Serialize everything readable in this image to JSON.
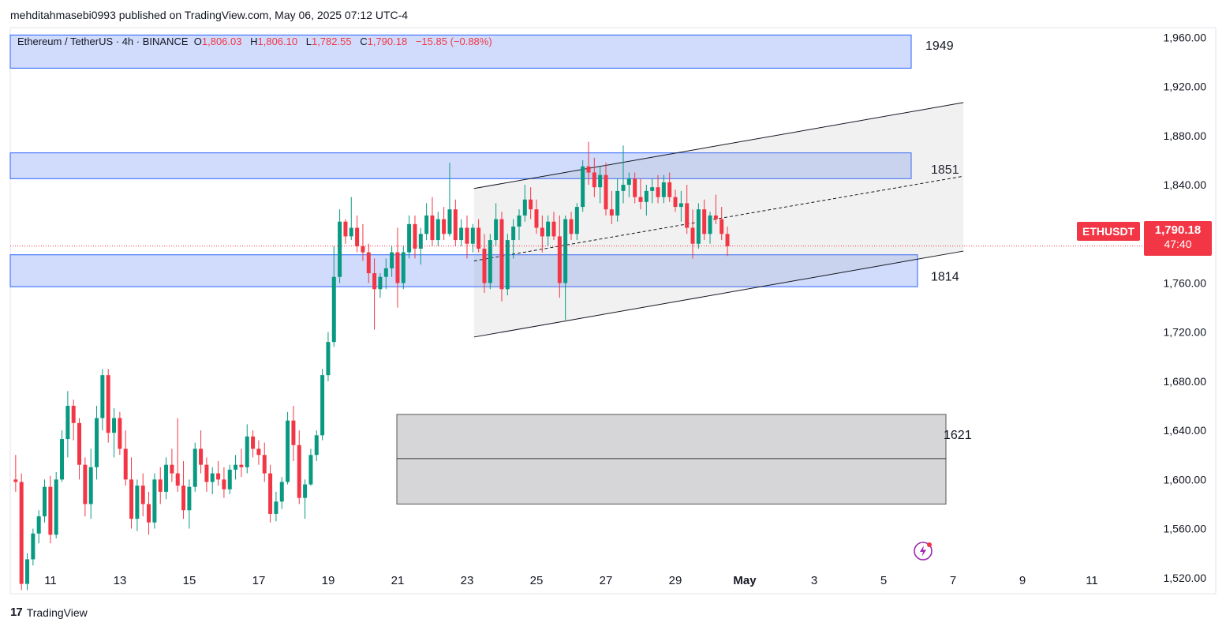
{
  "caption": "mehditahmasebi0993 published on TradingView.com, May 06, 2025 07:12 UTC-4",
  "ohlc": {
    "title": "Ethereum / TetherUS · 4h · BINANCE",
    "o_label": "O",
    "o_value": "1,806.03",
    "h_label": "H",
    "h_value": "1,806.10",
    "l_label": "L",
    "l_value": "1,782.55",
    "c_label": "C",
    "c_value": "1,790.18",
    "change": "−15.85 (−0.88%)"
  },
  "symbol_badge": "ETHUSDT",
  "price_badge": {
    "price": "1,790.18",
    "timer": "47:40"
  },
  "footer_logo_text": "TradingView",
  "colors": {
    "up": "#089981",
    "down": "#f23645",
    "zone_blue": "#c9d6fb",
    "zone_gray": "#cfcfd2",
    "channel": "#eeeeee"
  },
  "chart_data": {
    "type": "candlestick",
    "symbol": "ETHUSDT",
    "interval": "4h",
    "ylim": [
      1507,
      1968
    ],
    "y_ticks": [
      "1,520.00",
      "1,560.00",
      "1,600.00",
      "1,640.00",
      "1,680.00",
      "1,720.00",
      "1,760.00",
      "1,800.00",
      "1,840.00",
      "1,880.00",
      "1,920.00",
      "1,960.00"
    ],
    "y_tick_values": [
      1520,
      1560,
      1600,
      1640,
      1680,
      1720,
      1760,
      1800,
      1840,
      1880,
      1920,
      1960
    ],
    "x_ticks": [
      "11",
      "13",
      "15",
      "17",
      "19",
      "21",
      "23",
      "25",
      "27",
      "29",
      "May",
      "3",
      "5",
      "7",
      "9",
      "11"
    ],
    "x_tick_days": [
      0,
      2,
      4,
      6,
      8,
      10,
      12,
      14,
      16,
      18,
      20,
      22,
      24,
      26,
      28,
      30
    ],
    "candles": [
      [
        1665,
        1668,
        1595,
        1600
      ],
      [
        1600,
        1620,
        1590,
        1598
      ],
      [
        1598,
        1605,
        1510,
        1515
      ],
      [
        1515,
        1540,
        1510,
        1535
      ],
      [
        1535,
        1560,
        1530,
        1556
      ],
      [
        1556,
        1575,
        1548,
        1570
      ],
      [
        1570,
        1600,
        1565,
        1594
      ],
      [
        1594,
        1603,
        1548,
        1555
      ],
      [
        1555,
        1606,
        1552,
        1600
      ],
      [
        1600,
        1640,
        1598,
        1633
      ],
      [
        1633,
        1672,
        1618,
        1660
      ],
      [
        1660,
        1665,
        1632,
        1646
      ],
      [
        1646,
        1650,
        1600,
        1612
      ],
      [
        1612,
        1618,
        1570,
        1580
      ],
      [
        1580,
        1625,
        1568,
        1610
      ],
      [
        1610,
        1660,
        1600,
        1650
      ],
      [
        1650,
        1690,
        1640,
        1685
      ],
      [
        1685,
        1690,
        1630,
        1638
      ],
      [
        1638,
        1658,
        1618,
        1650
      ],
      [
        1650,
        1655,
        1620,
        1625
      ],
      [
        1625,
        1640,
        1595,
        1600
      ],
      [
        1600,
        1618,
        1560,
        1568
      ],
      [
        1568,
        1600,
        1558,
        1595
      ],
      [
        1595,
        1605,
        1570,
        1580
      ],
      [
        1580,
        1590,
        1555,
        1565
      ],
      [
        1565,
        1605,
        1560,
        1600
      ],
      [
        1600,
        1610,
        1580,
        1590
      ],
      [
        1590,
        1618,
        1584,
        1612
      ],
      [
        1612,
        1625,
        1598,
        1605
      ],
      [
        1605,
        1650,
        1590,
        1595
      ],
      [
        1595,
        1615,
        1568,
        1575
      ],
      [
        1575,
        1600,
        1560,
        1594
      ],
      [
        1594,
        1630,
        1590,
        1625
      ],
      [
        1625,
        1640,
        1605,
        1612
      ],
      [
        1612,
        1618,
        1590,
        1598
      ],
      [
        1598,
        1610,
        1588,
        1605
      ],
      [
        1605,
        1615,
        1595,
        1600
      ],
      [
        1600,
        1610,
        1585,
        1592
      ],
      [
        1592,
        1612,
        1588,
        1608
      ],
      [
        1608,
        1620,
        1600,
        1612
      ],
      [
        1612,
        1625,
        1602,
        1610
      ],
      [
        1610,
        1645,
        1605,
        1635
      ],
      [
        1635,
        1640,
        1618,
        1625
      ],
      [
        1625,
        1632,
        1612,
        1620
      ],
      [
        1620,
        1630,
        1598,
        1605
      ],
      [
        1605,
        1612,
        1565,
        1572
      ],
      [
        1572,
        1590,
        1566,
        1582
      ],
      [
        1582,
        1602,
        1576,
        1598
      ],
      [
        1598,
        1655,
        1596,
        1648
      ],
      [
        1648,
        1660,
        1615,
        1628
      ],
      [
        1628,
        1640,
        1580,
        1585
      ],
      [
        1585,
        1600,
        1568,
        1596
      ],
      [
        1596,
        1625,
        1595,
        1620
      ],
      [
        1620,
        1640,
        1615,
        1636
      ],
      [
        1636,
        1690,
        1632,
        1685
      ],
      [
        1685,
        1720,
        1680,
        1712
      ],
      [
        1712,
        1790,
        1708,
        1765
      ],
      [
        1765,
        1820,
        1760,
        1810
      ],
      [
        1810,
        1812,
        1792,
        1798
      ],
      [
        1798,
        1830,
        1795,
        1805
      ],
      [
        1805,
        1815,
        1785,
        1790
      ],
      [
        1790,
        1808,
        1778,
        1785
      ],
      [
        1785,
        1792,
        1760,
        1768
      ],
      [
        1768,
        1780,
        1722,
        1755
      ],
      [
        1755,
        1768,
        1748,
        1765
      ],
      [
        1765,
        1780,
        1755,
        1772
      ],
      [
        1772,
        1790,
        1765,
        1785
      ],
      [
        1785,
        1805,
        1740,
        1760
      ],
      [
        1760,
        1790,
        1755,
        1785
      ],
      [
        1785,
        1815,
        1780,
        1808
      ],
      [
        1808,
        1815,
        1780,
        1788
      ],
      [
        1788,
        1805,
        1775,
        1800
      ],
      [
        1800,
        1825,
        1795,
        1815
      ],
      [
        1815,
        1830,
        1790,
        1795
      ],
      [
        1795,
        1818,
        1790,
        1812
      ],
      [
        1812,
        1822,
        1795,
        1800
      ],
      [
        1800,
        1858,
        1798,
        1820
      ],
      [
        1820,
        1828,
        1790,
        1795
      ],
      [
        1795,
        1812,
        1790,
        1805
      ],
      [
        1805,
        1815,
        1780,
        1792
      ],
      [
        1792,
        1808,
        1785,
        1805
      ],
      [
        1805,
        1812,
        1785,
        1788
      ],
      [
        1788,
        1800,
        1752,
        1760
      ],
      [
        1760,
        1800,
        1755,
        1795
      ],
      [
        1795,
        1825,
        1790,
        1812
      ],
      [
        1812,
        1818,
        1745,
        1755
      ],
      [
        1755,
        1800,
        1750,
        1795
      ],
      [
        1795,
        1812,
        1780,
        1806
      ],
      [
        1806,
        1820,
        1795,
        1815
      ],
      [
        1815,
        1840,
        1810,
        1828
      ],
      [
        1828,
        1838,
        1812,
        1820
      ],
      [
        1820,
        1828,
        1800,
        1805
      ],
      [
        1805,
        1815,
        1785,
        1798
      ],
      [
        1798,
        1815,
        1790,
        1810
      ],
      [
        1810,
        1818,
        1795,
        1798
      ],
      [
        1798,
        1815,
        1748,
        1760
      ],
      [
        1760,
        1815,
        1730,
        1812
      ],
      [
        1812,
        1818,
        1795,
        1800
      ],
      [
        1800,
        1825,
        1795,
        1822
      ],
      [
        1822,
        1860,
        1818,
        1855
      ],
      [
        1855,
        1875,
        1840,
        1850
      ],
      [
        1850,
        1862,
        1830,
        1838
      ],
      [
        1838,
        1855,
        1825,
        1848
      ],
      [
        1848,
        1858,
        1815,
        1820
      ],
      [
        1820,
        1835,
        1808,
        1815
      ],
      [
        1815,
        1845,
        1810,
        1835
      ],
      [
        1835,
        1872,
        1825,
        1840
      ],
      [
        1840,
        1850,
        1830,
        1845
      ],
      [
        1845,
        1850,
        1825,
        1830
      ],
      [
        1830,
        1845,
        1820,
        1826
      ],
      [
        1826,
        1840,
        1815,
        1835
      ],
      [
        1835,
        1845,
        1825,
        1838
      ],
      [
        1838,
        1848,
        1825,
        1830
      ],
      [
        1830,
        1848,
        1825,
        1842
      ],
      [
        1842,
        1850,
        1826,
        1830
      ],
      [
        1830,
        1836,
        1818,
        1822
      ],
      [
        1822,
        1835,
        1810,
        1825
      ],
      [
        1825,
        1840,
        1800,
        1805
      ],
      [
        1805,
        1820,
        1780,
        1792
      ],
      [
        1792,
        1825,
        1788,
        1820
      ],
      [
        1820,
        1828,
        1795,
        1800
      ],
      [
        1800,
        1818,
        1792,
        1815
      ],
      [
        1815,
        1832,
        1808,
        1812
      ],
      [
        1812,
        1822,
        1795,
        1800
      ],
      [
        1800,
        1806,
        1782,
        1790
      ]
    ],
    "zones": [
      {
        "name": "1949",
        "label": "1949",
        "from": 1935,
        "to": 1962,
        "style": "blue"
      },
      {
        "name": "1851",
        "label": "1851",
        "from": 1845,
        "to": 1866,
        "style": "blue"
      },
      {
        "name": "1814",
        "label": "1814",
        "from": 1757,
        "to": 1783,
        "style": "blue"
      },
      {
        "name": "1621",
        "label": "1621",
        "from": 1580,
        "to": 1653,
        "style": "gray",
        "midline": 1617
      }
    ],
    "channel": {
      "start_day": 12.2,
      "end_day": 26.3,
      "upper": [
        1837,
        1907
      ],
      "lower": [
        1716,
        1786
      ],
      "mid": [
        1778,
        1847
      ]
    },
    "current_price": 1790.18
  }
}
